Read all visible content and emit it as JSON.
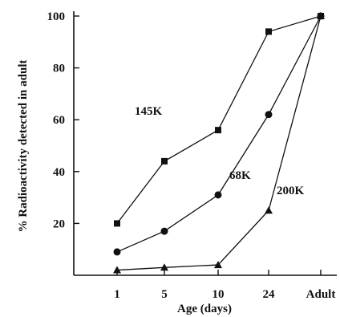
{
  "chart_data": {
    "type": "line",
    "title": "",
    "xlabel": "Age (days)",
    "ylabel": "% Radioactivity detected in adult",
    "categories": [
      "1",
      "5",
      "10",
      "24",
      "Adult"
    ],
    "ylim": [
      0,
      100
    ],
    "yticks": [
      "20",
      "40",
      "60",
      "80",
      "100"
    ],
    "grid": false,
    "legend": "none",
    "series": [
      {
        "name": "145K",
        "marker": "square",
        "values": [
          20,
          44,
          56,
          94,
          100
        ]
      },
      {
        "name": "68K",
        "marker": "circle",
        "values": [
          9,
          17,
          31,
          62,
          100
        ]
      },
      {
        "name": "200K",
        "marker": "triangle",
        "values": [
          2,
          3,
          4,
          25,
          100
        ]
      }
    ]
  }
}
